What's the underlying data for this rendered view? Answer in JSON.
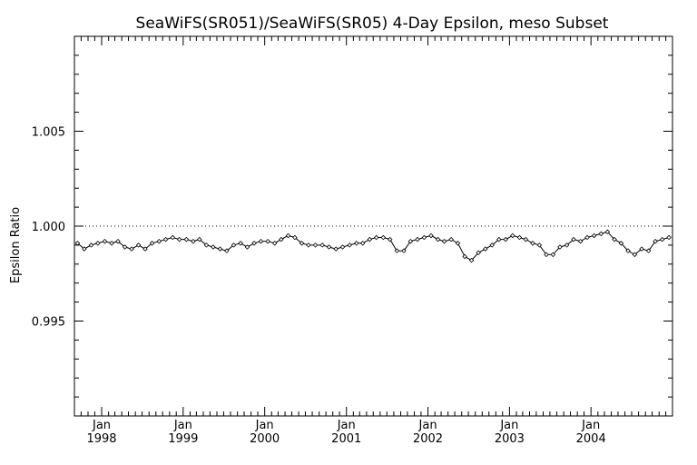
{
  "chart_data": {
    "type": "line",
    "title": "SeaWiFS(SR051)/SeaWiFS(SR05) 4-Day Epsilon, meso Subset",
    "ylabel": "Epsilon Ratio",
    "xlabel": "",
    "xlim": [
      "1997-09-01",
      "2004-12-31"
    ],
    "ylim": [
      0.99,
      1.01
    ],
    "y_ticks": [
      {
        "value": 0.995,
        "label": "0.995"
      },
      {
        "value": 1.0,
        "label": "1.000"
      },
      {
        "value": 1.005,
        "label": "1.005"
      }
    ],
    "x_ticks": [
      {
        "date": "1998-01-01",
        "month": "Jan",
        "year": "1998"
      },
      {
        "date": "1999-01-01",
        "month": "Jan",
        "year": "1999"
      },
      {
        "date": "2000-01-01",
        "month": "Jan",
        "year": "2000"
      },
      {
        "date": "2001-01-01",
        "month": "Jan",
        "year": "2001"
      },
      {
        "date": "2002-01-01",
        "month": "Jan",
        "year": "2002"
      },
      {
        "date": "2003-01-01",
        "month": "Jan",
        "year": "2003"
      },
      {
        "date": "2004-01-01",
        "month": "Jan",
        "year": "2004"
      }
    ],
    "reference_line": {
      "y": 1.0,
      "style": "dotted"
    },
    "grid": false,
    "series": [
      {
        "x": [
          "1997-09-15",
          "1997-10-15",
          "1997-11-15",
          "1997-12-15",
          "1998-01-15",
          "1998-02-15",
          "1998-03-15",
          "1998-04-15",
          "1998-05-15",
          "1998-06-15",
          "1998-07-15",
          "1998-08-15",
          "1998-09-15",
          "1998-10-15",
          "1998-11-15",
          "1998-12-15",
          "1999-01-15",
          "1999-02-15",
          "1999-03-15",
          "1999-04-15",
          "1999-05-15",
          "1999-06-15",
          "1999-07-15",
          "1999-08-15",
          "1999-09-15",
          "1999-10-15",
          "1999-11-15",
          "1999-12-15",
          "2000-01-15",
          "2000-02-15",
          "2000-03-15",
          "2000-04-15",
          "2000-05-15",
          "2000-06-15",
          "2000-07-15",
          "2000-08-15",
          "2000-09-15",
          "2000-10-15",
          "2000-11-15",
          "2000-12-15",
          "2001-01-15",
          "2001-02-15",
          "2001-03-15",
          "2001-04-15",
          "2001-05-15",
          "2001-06-15",
          "2001-07-15",
          "2001-08-15",
          "2001-09-15",
          "2001-10-15",
          "2001-11-15",
          "2001-12-15",
          "2002-01-15",
          "2002-02-15",
          "2002-03-15",
          "2002-04-15",
          "2002-05-15",
          "2002-06-15",
          "2002-07-15",
          "2002-08-15",
          "2002-09-15",
          "2002-10-15",
          "2002-11-15",
          "2002-12-15",
          "2003-01-15",
          "2003-02-15",
          "2003-03-15",
          "2003-04-15",
          "2003-05-15",
          "2003-06-15",
          "2003-07-15",
          "2003-08-15",
          "2003-09-15",
          "2003-10-15",
          "2003-11-15",
          "2003-12-15",
          "2004-01-15",
          "2004-02-15",
          "2004-03-15",
          "2004-04-15",
          "2004-05-15",
          "2004-06-15",
          "2004-07-15",
          "2004-08-15",
          "2004-09-15",
          "2004-10-15",
          "2004-11-15",
          "2004-12-15"
        ],
        "y": [
          0.9991,
          0.9988,
          0.999,
          0.9991,
          0.9992,
          0.9991,
          0.9992,
          0.9989,
          0.9988,
          0.999,
          0.9988,
          0.9991,
          0.9992,
          0.9993,
          0.9994,
          0.9993,
          0.9993,
          0.9992,
          0.9993,
          0.999,
          0.9989,
          0.9988,
          0.9987,
          0.999,
          0.9991,
          0.9989,
          0.9991,
          0.9992,
          0.9992,
          0.9991,
          0.9993,
          0.9995,
          0.9994,
          0.9991,
          0.999,
          0.999,
          0.999,
          0.9989,
          0.9988,
          0.9989,
          0.999,
          0.9991,
          0.9991,
          0.9993,
          0.9994,
          0.9994,
          0.9993,
          0.9987,
          0.9987,
          0.9992,
          0.9993,
          0.9994,
          0.9995,
          0.9993,
          0.9992,
          0.9993,
          0.9991,
          0.9984,
          0.9982,
          0.9986,
          0.9988,
          0.999,
          0.9993,
          0.9993,
          0.9995,
          0.9994,
          0.9993,
          0.9991,
          0.999,
          0.9985,
          0.9985,
          0.9989,
          0.999,
          0.9993,
          0.9992,
          0.9994,
          0.9995,
          0.9996,
          0.9997,
          0.9993,
          0.9991,
          0.9987,
          0.9985,
          0.9988,
          0.9987,
          0.9992,
          0.9993,
          0.9994
        ]
      }
    ]
  }
}
